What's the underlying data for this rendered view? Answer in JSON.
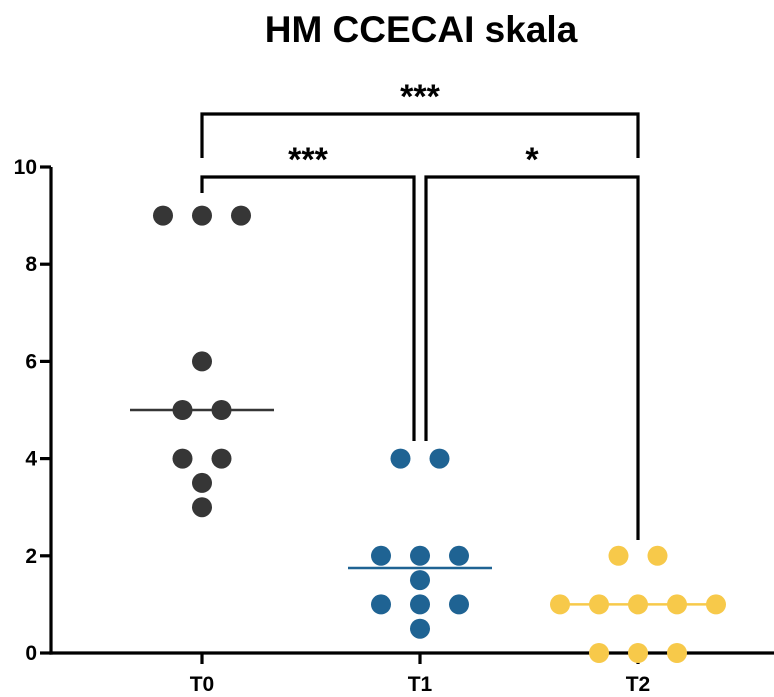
{
  "chart_data": {
    "type": "scatter",
    "title": "HM CCECAI skala",
    "xlabel": "",
    "ylabel": "",
    "ylim": [
      0,
      10
    ],
    "y_ticks": [
      0,
      2,
      4,
      6,
      8,
      10
    ],
    "grid": false,
    "legend": "none",
    "categories": [
      "T0",
      "T1",
      "T2"
    ],
    "series": [
      {
        "category": "T0",
        "color": "#363636",
        "values": [
          9,
          9,
          9,
          6,
          5,
          5,
          4,
          4,
          3.5,
          3
        ],
        "median": 5
      },
      {
        "category": "T1",
        "color": "#1f6393",
        "values": [
          4,
          4,
          2,
          2,
          2,
          1.5,
          1,
          1,
          1,
          0.5
        ],
        "median": 1.75
      },
      {
        "category": "T2",
        "color": "#f7c94a",
        "values": [
          2,
          2,
          1,
          1,
          1,
          1,
          1,
          0,
          0,
          0
        ],
        "median": 1
      }
    ],
    "significance": [
      {
        "from": "T0",
        "to": "T1",
        "label": "***"
      },
      {
        "from": "T1",
        "to": "T2",
        "label": "*"
      },
      {
        "from": "T0",
        "to": "T2",
        "label": "***"
      }
    ]
  }
}
